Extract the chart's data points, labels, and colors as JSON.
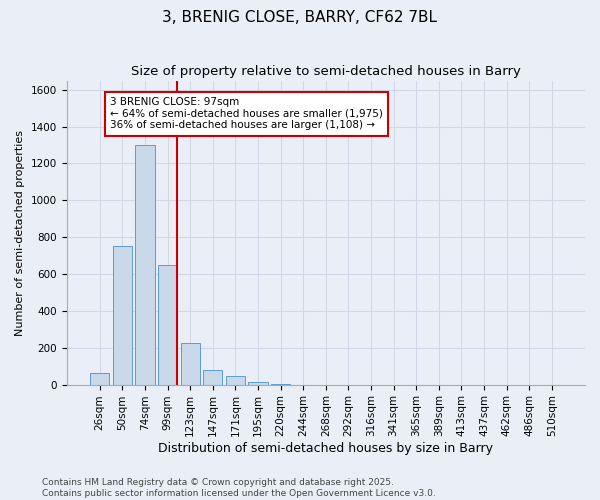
{
  "title": "3, BRENIG CLOSE, BARRY, CF62 7BL",
  "subtitle": "Size of property relative to semi-detached houses in Barry",
  "xlabel": "Distribution of semi-detached houses by size in Barry",
  "ylabel": "Number of semi-detached properties",
  "categories": [
    "26sqm",
    "50sqm",
    "74sqm",
    "99sqm",
    "123sqm",
    "147sqm",
    "171sqm",
    "195sqm",
    "220sqm",
    "244sqm",
    "268sqm",
    "292sqm",
    "316sqm",
    "341sqm",
    "365sqm",
    "389sqm",
    "413sqm",
    "437sqm",
    "462sqm",
    "486sqm",
    "510sqm"
  ],
  "values": [
    65,
    750,
    1300,
    650,
    225,
    80,
    45,
    15,
    5,
    0,
    0,
    0,
    0,
    0,
    0,
    0,
    0,
    0,
    0,
    0,
    0
  ],
  "bar_color": "#c8d8e8",
  "bar_edge_color": "#5b9bd5",
  "annotation_text": "3 BRENIG CLOSE: 97sqm\n← 64% of semi-detached houses are smaller (1,975)\n36% of semi-detached houses are larger (1,108) →",
  "annotation_box_color": "#ffffff",
  "annotation_box_edge": "#cc0000",
  "red_line_color": "#cc0000",
  "ylim": [
    0,
    1650
  ],
  "yticks": [
    0,
    200,
    400,
    600,
    800,
    1000,
    1200,
    1400,
    1600
  ],
  "grid_color": "#d0d8e8",
  "bg_color": "#eaeff7",
  "footer": "Contains HM Land Registry data © Crown copyright and database right 2025.\nContains public sector information licensed under the Open Government Licence v3.0.",
  "title_fontsize": 11,
  "subtitle_fontsize": 9.5,
  "xlabel_fontsize": 9,
  "ylabel_fontsize": 8,
  "tick_fontsize": 7.5,
  "annot_fontsize": 7.5,
  "footer_fontsize": 6.5
}
